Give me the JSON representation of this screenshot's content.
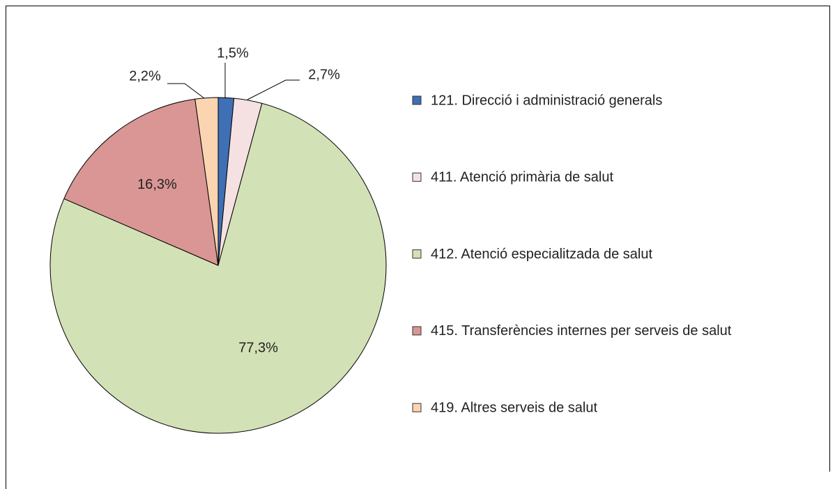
{
  "chart_data": {
    "type": "pie",
    "categories": [
      "121. Direcció i administració generals",
      "411. Atenció primària de salut",
      "412. Atenció especialitzada de salut",
      "415. Transferències internes per serveis de salut",
      "419. Altres serveis de salut"
    ],
    "values": [
      1.5,
      2.7,
      77.3,
      16.3,
      2.2
    ],
    "value_labels": [
      "1,5%",
      "2,7%",
      "77,3%",
      "16,3%",
      "2,2%"
    ],
    "colors": [
      "#3f6fb5",
      "#f5e1e1",
      "#d3e1b6",
      "#d99694",
      "#fbd4b2"
    ],
    "legend": "right"
  }
}
